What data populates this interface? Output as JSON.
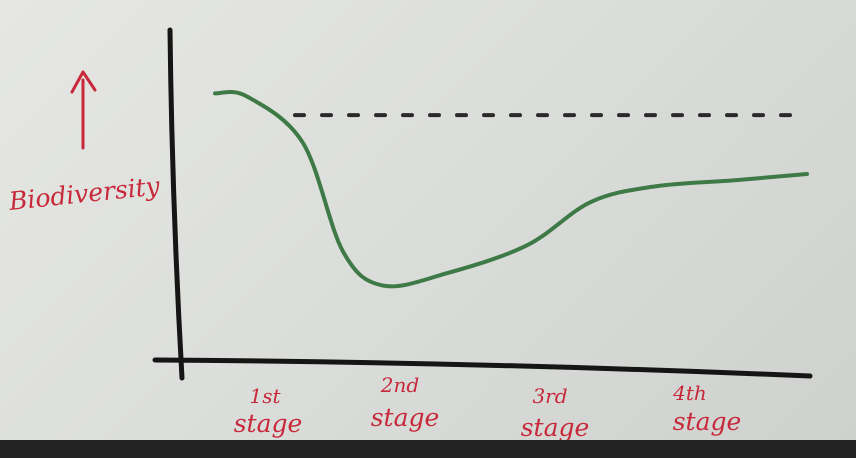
{
  "chart_data": {
    "type": "line",
    "title": "",
    "ylabel": "Biodiversity",
    "xlabel": "",
    "categories": [
      "1st stage",
      "2nd stage",
      "3rd stage",
      "4th stage"
    ],
    "tick_labels": [
      {
        "top": "1st",
        "bottom": "stage"
      },
      {
        "top": "2nd",
        "bottom": "stage"
      },
      {
        "top": "3rd",
        "bottom": "stage"
      },
      {
        "top": "4th",
        "bottom": "stage"
      }
    ],
    "x_range": [
      0,
      4
    ],
    "ylim": [
      0,
      100
    ],
    "series": [
      {
        "style": "solid",
        "color": "#3e7a46",
        "x": [
          0.25,
          0.45,
          0.8,
          1.05,
          1.3,
          1.7,
          2.2,
          2.6,
          3.0,
          3.5,
          3.95
        ],
        "y": [
          86,
          85,
          70,
          35,
          24,
          28,
          37,
          51,
          56,
          58,
          60
        ]
      },
      {
        "style": "dashed",
        "color": "#2a2a2a",
        "x": [
          0.75,
          3.95
        ],
        "y": [
          79,
          79
        ]
      }
    ],
    "grid": false,
    "legend": "none",
    "y_arrow": true,
    "label_color": "#c7283a"
  }
}
